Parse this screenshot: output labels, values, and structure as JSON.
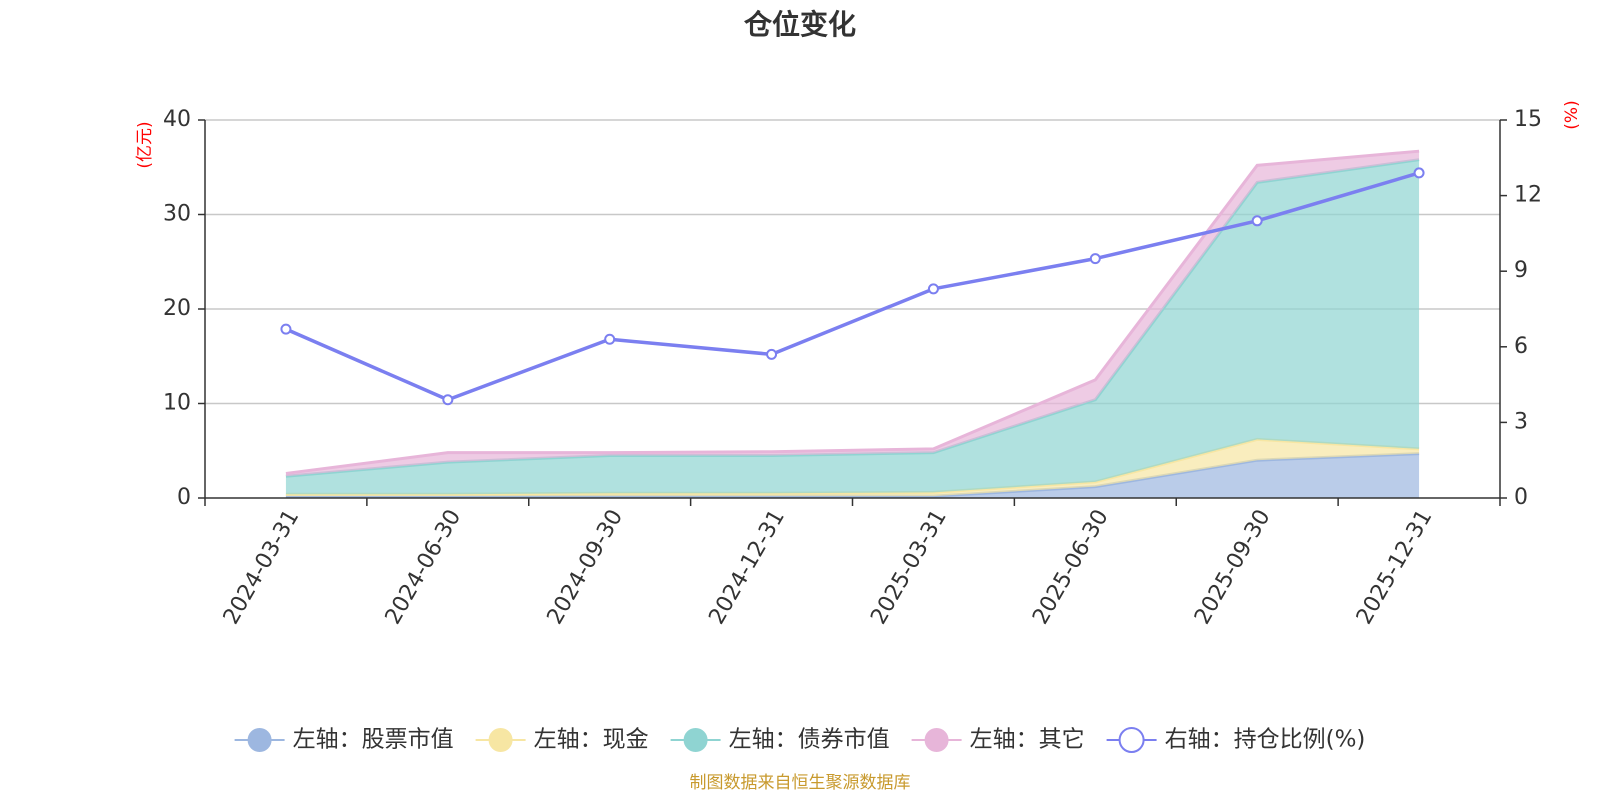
{
  "chart_data": {
    "type": "area",
    "title": "仓位变化",
    "categories": [
      "2024-03-31",
      "2024-06-30",
      "2024-09-30",
      "2024-12-31",
      "2025-03-31",
      "2025-06-30",
      "2025-09-30",
      "2025-12-31"
    ],
    "left_axis": {
      "unit": "(亿元)",
      "min": 0,
      "max": 40,
      "ticks": [
        0,
        10,
        20,
        30,
        40
      ]
    },
    "right_axis": {
      "unit": "(%)",
      "min": 0,
      "max": 15,
      "ticks": [
        0,
        3,
        6,
        9,
        12,
        15
      ]
    },
    "stacked": true,
    "series": [
      {
        "name": "左轴：股票市值",
        "axis": "left",
        "type": "area",
        "color": "#9db7e0",
        "values": [
          0.2,
          0.2,
          0.2,
          0.2,
          0.2,
          1.2,
          4.0,
          4.7
        ]
      },
      {
        "name": "左轴：现金",
        "axis": "left",
        "type": "area",
        "color": "#f7e6a3",
        "values": [
          0.2,
          0.2,
          0.3,
          0.3,
          0.4,
          0.5,
          2.2,
          0.5
        ]
      },
      {
        "name": "左轴：债券市值",
        "axis": "left",
        "type": "area",
        "color": "#8fd4d2",
        "values": [
          1.9,
          3.4,
          4.0,
          4.0,
          4.2,
          8.7,
          27.2,
          30.6
        ]
      },
      {
        "name": "左轴：其它",
        "axis": "left",
        "type": "area",
        "color": "#e7b5d9",
        "values": [
          0.3,
          1.0,
          0.3,
          0.4,
          0.4,
          2.1,
          1.8,
          0.9
        ]
      },
      {
        "name": "右轴：持仓比例(%)",
        "axis": "right",
        "type": "line",
        "color": "#7b7ff0",
        "values": [
          6.7,
          3.9,
          6.3,
          5.7,
          8.3,
          9.5,
          11.0,
          12.9
        ]
      }
    ],
    "grid": true,
    "legend_position": "bottom"
  },
  "source": "制图数据来自恒生聚源数据库"
}
